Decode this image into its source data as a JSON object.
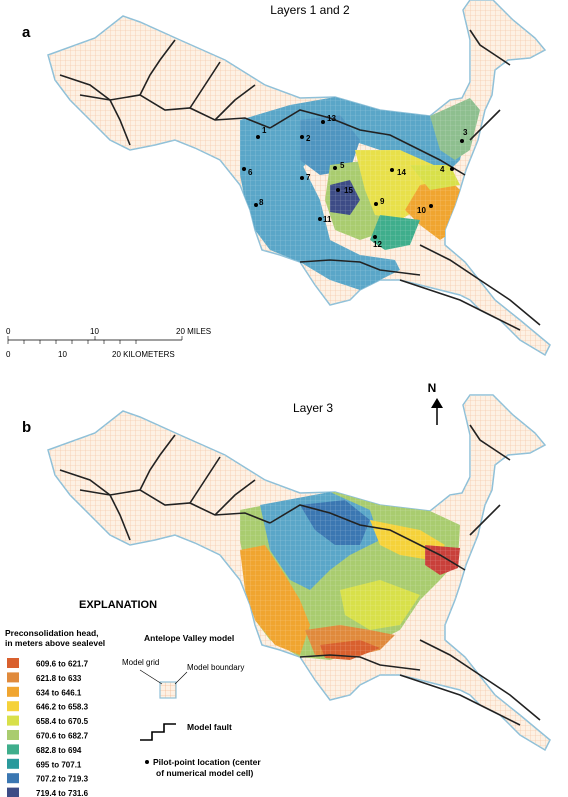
{
  "panel_a": {
    "letter": "a",
    "title": "Layers 1 and 2"
  },
  "panel_b": {
    "letter": "b",
    "title": "Layer 3"
  },
  "north_arrow": {
    "label": "N",
    "icon": "north-arrow-icon"
  },
  "scale_bar": {
    "miles_ticks": [
      "0",
      "10",
      "20 MILES"
    ],
    "km_ticks": [
      "0",
      "10",
      "20 KILOMETERS"
    ]
  },
  "pilot_points": [
    {
      "id": "1",
      "label": "1"
    },
    {
      "id": "2",
      "label": "2"
    },
    {
      "id": "3",
      "label": "3"
    },
    {
      "id": "4",
      "label": "4"
    },
    {
      "id": "5",
      "label": "5"
    },
    {
      "id": "6",
      "label": "6"
    },
    {
      "id": "7",
      "label": "7"
    },
    {
      "id": "8",
      "label": "8"
    },
    {
      "id": "9",
      "label": "9"
    },
    {
      "id": "10",
      "label": "10"
    },
    {
      "id": "11",
      "label": "11"
    },
    {
      "id": "12",
      "label": "12"
    },
    {
      "id": "13",
      "label": "13"
    },
    {
      "id": "14",
      "label": "14"
    },
    {
      "id": "15",
      "label": "15"
    }
  ],
  "legend": {
    "heading": "EXPLANATION",
    "ramp_title_line1": "Preconsolidation head,",
    "ramp_title_line2": "in meters above sealevel",
    "classes": [
      {
        "label": "609.6 to 621.7",
        "color": "#d9602e"
      },
      {
        "label": "621.8 to 633",
        "color": "#e08a3c"
      },
      {
        "label": "634 to 646.1",
        "color": "#f0a530"
      },
      {
        "label": "646.2 to 658.3",
        "color": "#f5d23a"
      },
      {
        "label": "658.4 to 670.5",
        "color": "#d8e04a"
      },
      {
        "label": "670.6 to 682.7",
        "color": "#a9cc6f"
      },
      {
        "label": "682.8 to 694",
        "color": "#3fae8c"
      },
      {
        "label": "695 to 707.1",
        "color": "#2a9a9c"
      },
      {
        "label": "707.2 to 719.3",
        "color": "#3b77b2"
      },
      {
        "label": "719.4 to 731.6",
        "color": "#3d4c86"
      }
    ],
    "model_title": "Antelope Valley model",
    "model_grid": "Model grid",
    "model_boundary": "Model boundary",
    "model_fault": "Model fault",
    "pilot_point_line1": "Pilot-point location (center",
    "pilot_point_line2": "of numerical model cell)"
  },
  "colors": {
    "grid_line": "#f0a878",
    "fill_cream": "#fdf1e4",
    "boundary": "#8fc0d8",
    "fault": "#222222"
  }
}
